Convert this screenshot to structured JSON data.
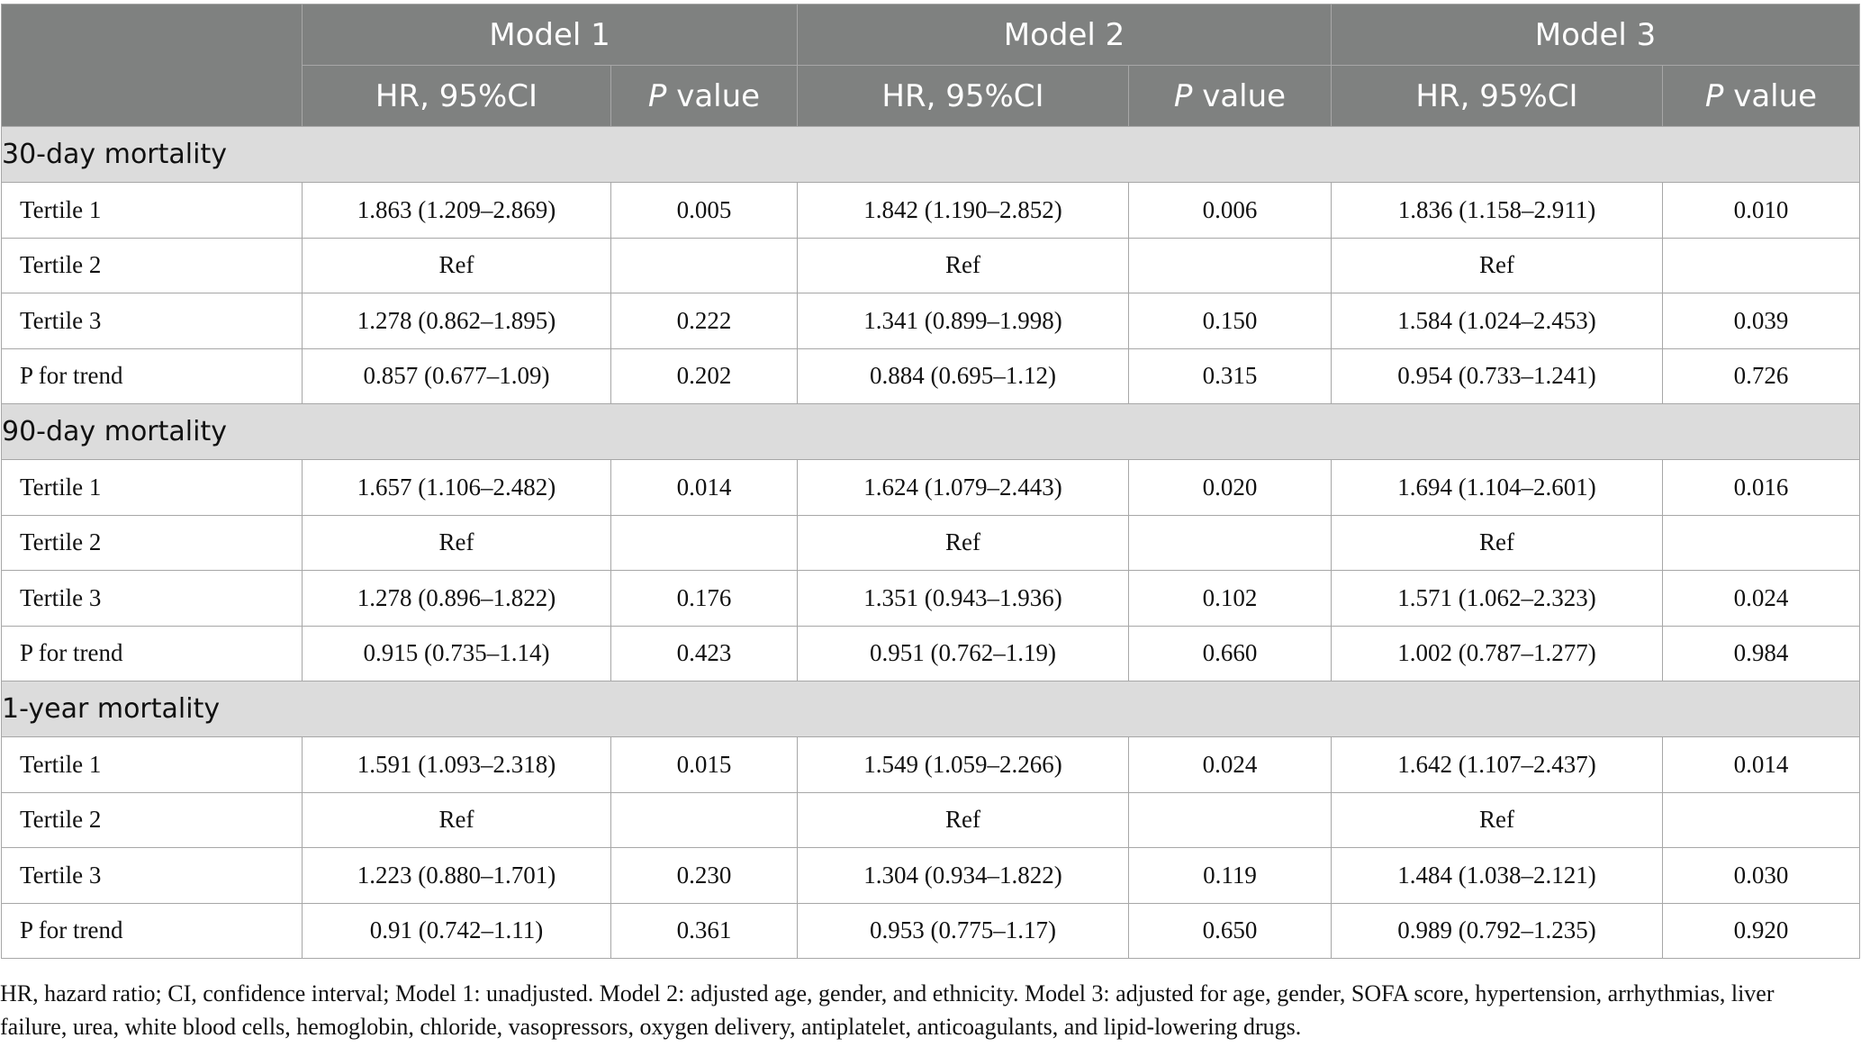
{
  "header": {
    "models": [
      "Model 1",
      "Model 2",
      "Model 3"
    ],
    "hr_label": "HR, 95%CI",
    "p_label_italic": "P",
    "p_label_rest": " value"
  },
  "sections": [
    {
      "title": "30-day mortality",
      "rows": [
        {
          "label": "Tertile 1",
          "cells": [
            "1.863 (1.209–2.869)",
            "0.005",
            "1.842 (1.190–2.852)",
            "0.006",
            "1.836 (1.158–2.911)",
            "0.010"
          ]
        },
        {
          "label": "Tertile 2",
          "cells": [
            "Ref",
            "",
            "Ref",
            "",
            "Ref",
            ""
          ]
        },
        {
          "label": "Tertile 3",
          "cells": [
            "1.278 (0.862–1.895)",
            "0.222",
            "1.341 (0.899–1.998)",
            "0.150",
            "1.584 (1.024–2.453)",
            "0.039"
          ]
        },
        {
          "label": "P for trend",
          "cells": [
            "0.857 (0.677–1.09)",
            "0.202",
            "0.884 (0.695–1.12)",
            "0.315",
            "0.954 (0.733–1.241)",
            "0.726"
          ]
        }
      ]
    },
    {
      "title": "90-day mortality",
      "rows": [
        {
          "label": "Tertile 1",
          "cells": [
            "1.657 (1.106–2.482)",
            "0.014",
            "1.624 (1.079–2.443)",
            "0.020",
            "1.694 (1.104–2.601)",
            "0.016"
          ]
        },
        {
          "label": "Tertile 2",
          "cells": [
            "Ref",
            "",
            "Ref",
            "",
            "Ref",
            ""
          ]
        },
        {
          "label": "Tertile 3",
          "cells": [
            "1.278 (0.896–1.822)",
            "0.176",
            "1.351 (0.943–1.936)",
            "0.102",
            "1.571 (1.062–2.323)",
            "0.024"
          ]
        },
        {
          "label": "P for trend",
          "cells": [
            "0.915 (0.735–1.14)",
            "0.423",
            "0.951 (0.762–1.19)",
            "0.660",
            "1.002 (0.787–1.277)",
            "0.984"
          ]
        }
      ]
    },
    {
      "title": "1-year mortality",
      "rows": [
        {
          "label": "Tertile 1",
          "cells": [
            "1.591 (1.093–2.318)",
            "0.015",
            "1.549 (1.059–2.266)",
            "0.024",
            "1.642 (1.107–2.437)",
            "0.014"
          ]
        },
        {
          "label": "Tertile 2",
          "cells": [
            "Ref",
            "",
            "Ref",
            "",
            "Ref",
            ""
          ]
        },
        {
          "label": "Tertile 3",
          "cells": [
            "1.223 (0.880–1.701)",
            "0.230",
            "1.304 (0.934–1.822)",
            "0.119",
            "1.484 (1.038–2.121)",
            "0.030"
          ]
        },
        {
          "label": "P for trend",
          "cells": [
            "0.91 (0.742–1.11)",
            "0.361",
            "0.953 (0.775–1.17)",
            "0.650",
            "0.989 (0.792–1.235)",
            "0.920"
          ]
        }
      ]
    }
  ],
  "footnote": "HR, hazard ratio; CI, confidence interval; Model 1: unadjusted. Model 2: adjusted age, gender, and ethnicity. Model 3: adjusted for age, gender, SOFA score, hypertension, arrhythmias, liver failure, urea, white blood cells, hemoglobin, chloride, vasopressors, oxygen delivery, antiplatelet, anticoagulants, and lipid-lowering drugs."
}
